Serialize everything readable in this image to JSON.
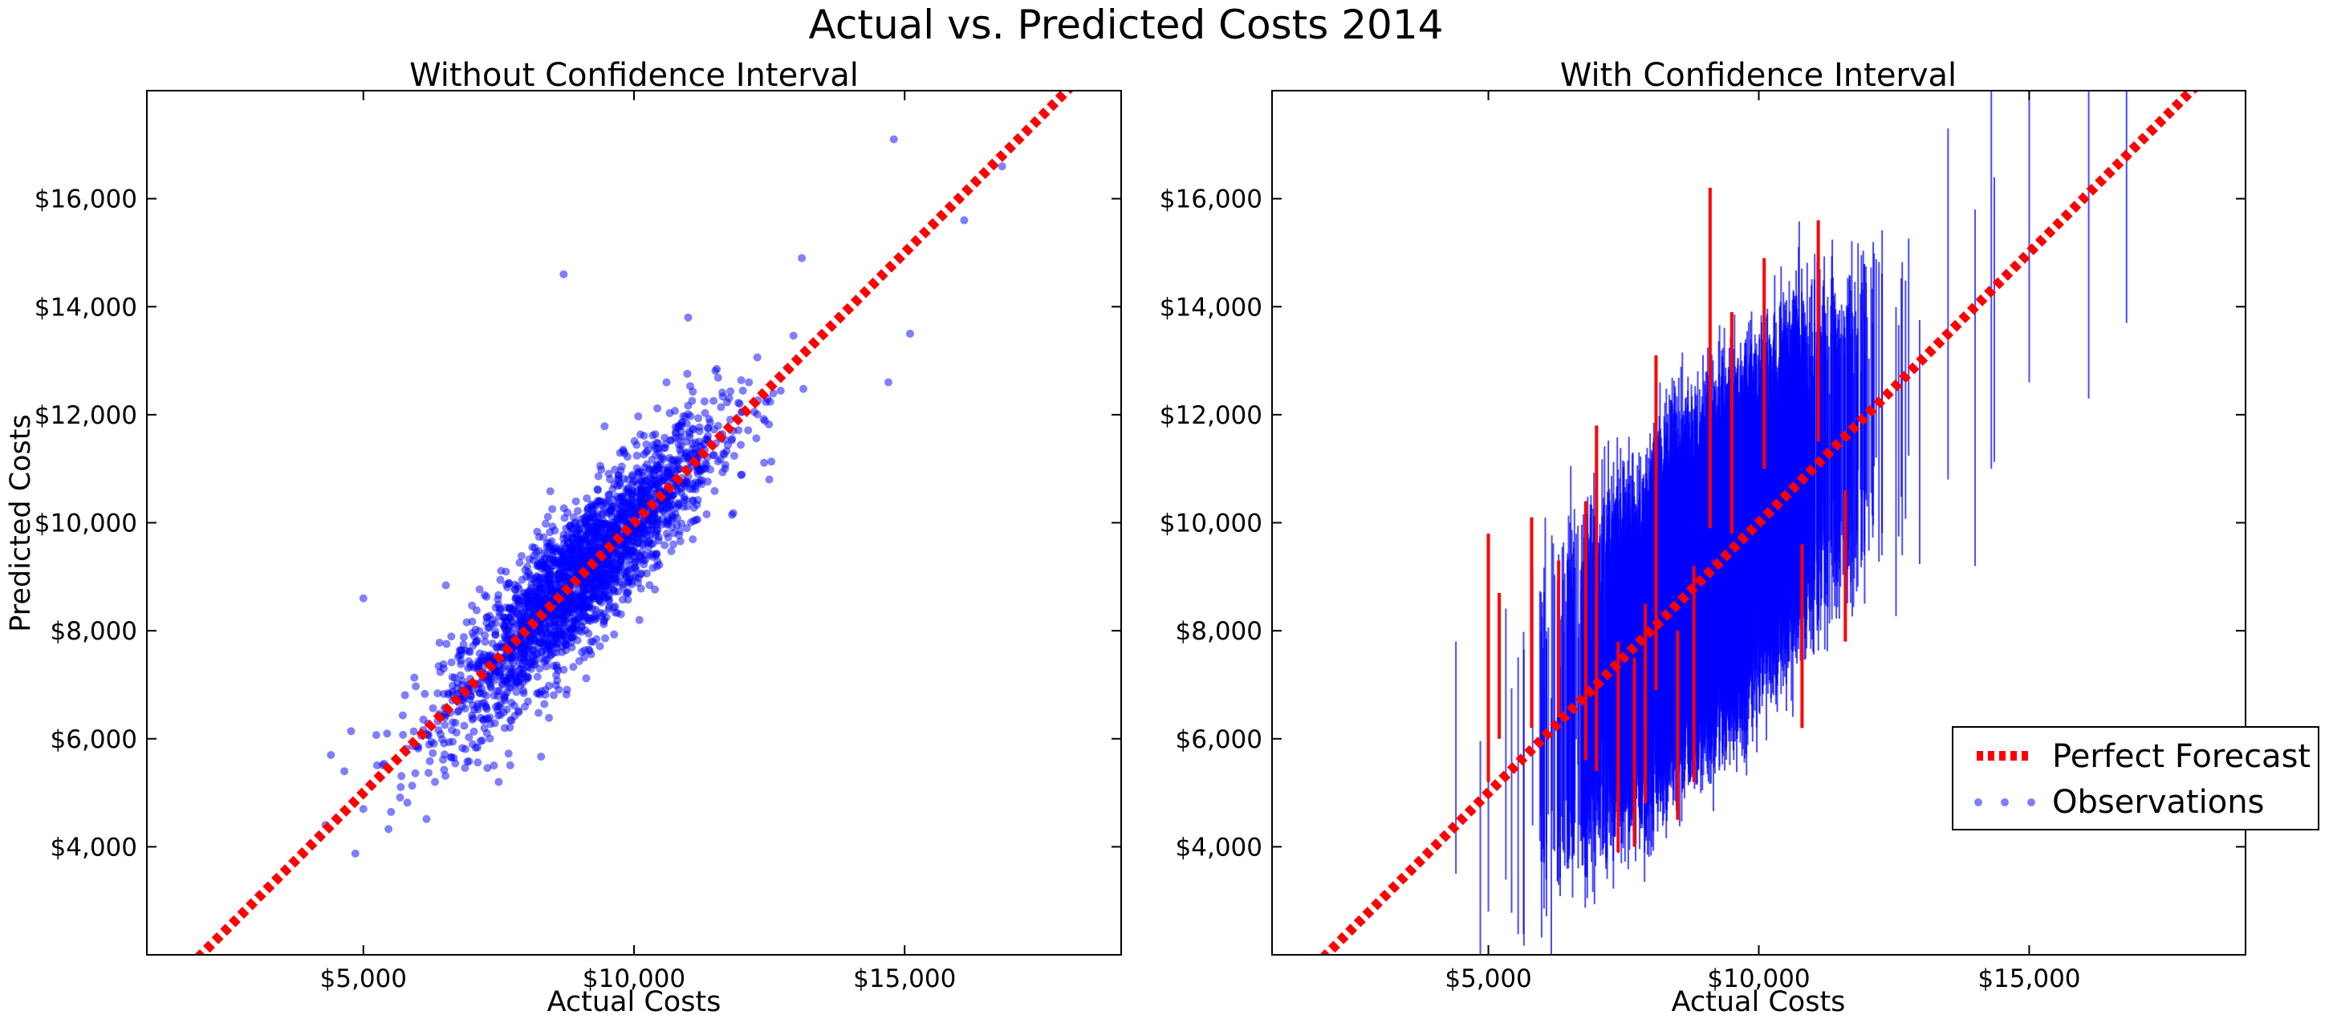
{
  "figure": {
    "title": "Actual vs. Predicted Costs 2014"
  },
  "chart_data": [
    {
      "type": "scatter",
      "title": "Without Confidence Interval",
      "xlabel": "Actual Costs",
      "ylabel": "Predicted Costs",
      "xlim": [
        1000,
        19000
      ],
      "ylim": [
        2000,
        18000
      ],
      "xticks": [
        5000,
        10000,
        15000
      ],
      "xtick_labels": [
        "$5,000",
        "$10,000",
        "$15,000"
      ],
      "yticks": [
        4000,
        6000,
        8000,
        10000,
        12000,
        14000,
        16000
      ],
      "ytick_labels": [
        "$4,000",
        "$6,000",
        "$8,000",
        "$10,000",
        "$12,000",
        "$14,000",
        "$16,000"
      ],
      "grid": false,
      "series": [
        {
          "name": "Perfect Forecast",
          "kind": "line",
          "style": "dotted",
          "color": "#ff0000",
          "x": [
            1000,
            19000
          ],
          "y": [
            1000,
            19000
          ]
        },
        {
          "name": "Observations",
          "kind": "scatter",
          "color": "#0000ff",
          "alpha": 0.5,
          "n_points": 2500,
          "center": [
            9000,
            9000
          ],
          "outliers": [
            [
              4400,
              5700
            ],
            [
              5000,
              8600
            ],
            [
              5000,
              4700
            ],
            [
              8700,
              14600
            ],
            [
              14800,
              17100
            ],
            [
              14700,
              12600
            ],
            [
              15100,
              13500
            ],
            [
              16100,
              15600
            ],
            [
              16800,
              16600
            ],
            [
              7500,
              5200
            ],
            [
              10100,
              8200
            ],
            [
              12500,
              10800
            ],
            [
              10600,
              12600
            ],
            [
              11000,
              13800
            ],
            [
              13100,
              14900
            ]
          ]
        }
      ]
    },
    {
      "type": "scatter",
      "title": "With Confidence Interval",
      "xlabel": "Actual Costs",
      "xlim": [
        1000,
        19000
      ],
      "ylim": [
        2000,
        18000
      ],
      "xticks": [
        5000,
        10000,
        15000
      ],
      "xtick_labels": [
        "$5,000",
        "$10,000",
        "$15,000"
      ],
      "yticks": [
        4000,
        6000,
        8000,
        10000,
        12000,
        14000,
        16000
      ],
      "ytick_labels": [
        "$4,000",
        "$6,000",
        "$8,000",
        "$10,000",
        "$12,000",
        "$14,000",
        "$16,000"
      ],
      "grid": false,
      "legend": {
        "position": "lower-right",
        "entries": [
          "Perfect Forecast",
          "Observations"
        ]
      },
      "series": [
        {
          "name": "Perfect Forecast",
          "kind": "line",
          "style": "dotted",
          "color": "#ff0000",
          "x": [
            1000,
            19000
          ],
          "y": [
            1000,
            19000
          ]
        },
        {
          "name": "Observations",
          "kind": "scatter-errorbar",
          "color": "#0000ff",
          "alpha": 0.7,
          "n_points": 2500,
          "interval_halfwidth": 2300,
          "interval_color": "#0000ff",
          "highlight_color": "#ff0000",
          "highlighted_intervals": [
            [
              5000,
              5200,
              9800
            ],
            [
              5200,
              6000,
              8700
            ],
            [
              5800,
              6200,
              10100
            ],
            [
              6300,
              6400,
              9300
            ],
            [
              6800,
              5600,
              10400
            ],
            [
              7000,
              5400,
              11800
            ],
            [
              7400,
              3900,
              7800
            ],
            [
              7700,
              4000,
              7500
            ],
            [
              8100,
              6900,
              13100
            ],
            [
              8500,
              4500,
              8000
            ],
            [
              8800,
              5200,
              9200
            ],
            [
              9100,
              9900,
              16200
            ],
            [
              9500,
              9800,
              13900
            ],
            [
              10100,
              11000,
              14900
            ],
            [
              10800,
              6200,
              9600
            ],
            [
              11100,
              11500,
              15600
            ],
            [
              11600,
              7800,
              10600
            ],
            [
              7900,
              4800,
              8500
            ]
          ],
          "extreme_points": [
            [
              4400,
              3500,
              7800
            ],
            [
              5000,
              2800,
              5800
            ],
            [
              15000,
              12600,
              18000
            ],
            [
              16100,
              12300,
              18000
            ],
            [
              16800,
              13700,
              18000
            ],
            [
              14300,
              11000,
              18000
            ],
            [
              14000,
              9200,
              15800
            ],
            [
              13500,
              10800,
              17300
            ]
          ]
        }
      ]
    }
  ]
}
